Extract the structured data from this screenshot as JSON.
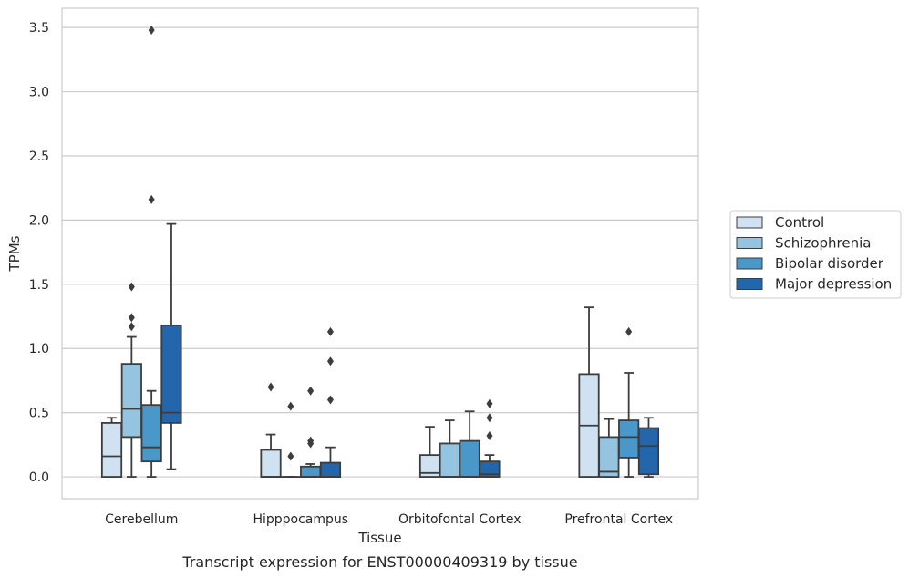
{
  "caption": "Transcript expression for ENST00000409319 by tissue",
  "chart_data": {
    "type": "box",
    "xlabel": "Tissue",
    "ylabel": "TPMs",
    "ylim": [
      -0.17,
      3.65
    ],
    "yticks": [
      0.0,
      0.5,
      1.0,
      1.5,
      2.0,
      2.5,
      3.0,
      3.5
    ],
    "ytick_labels": [
      "0.0",
      "0.5",
      "1.0",
      "1.5",
      "2.0",
      "2.5",
      "3.0",
      "3.5"
    ],
    "grid": "horizontal",
    "legend_position": "right",
    "categories": [
      "Cerebellum",
      "Hipppocampus",
      "Orbitofontal Cortex",
      "Prefrontal Cortex"
    ],
    "series": [
      {
        "name": "Control",
        "color": "#d0e1f2",
        "boxes": [
          {
            "whislo": 0.0,
            "q1": 0.0,
            "med": 0.16,
            "q3": 0.42,
            "whishi": 0.46,
            "fliers": []
          },
          {
            "whislo": 0.0,
            "q1": 0.0,
            "med": 0.0,
            "q3": 0.21,
            "whishi": 0.33,
            "fliers": [
              0.7
            ]
          },
          {
            "whislo": 0.0,
            "q1": 0.0,
            "med": 0.03,
            "q3": 0.17,
            "whishi": 0.39,
            "fliers": []
          },
          {
            "whislo": 0.0,
            "q1": 0.0,
            "med": 0.4,
            "q3": 0.8,
            "whishi": 1.32,
            "fliers": []
          }
        ]
      },
      {
        "name": "Schizophrenia",
        "color": "#94c4df",
        "boxes": [
          {
            "whislo": 0.0,
            "q1": 0.31,
            "med": 0.53,
            "q3": 0.88,
            "whishi": 1.09,
            "fliers": [
              1.17,
              1.24,
              1.48
            ]
          },
          {
            "whislo": 0.0,
            "q1": 0.0,
            "med": 0.0,
            "q3": 0.0,
            "whishi": 0.0,
            "fliers": [
              0.16,
              0.55
            ]
          },
          {
            "whislo": 0.0,
            "q1": 0.0,
            "med": 0.0,
            "q3": 0.26,
            "whishi": 0.44,
            "fliers": []
          },
          {
            "whislo": 0.0,
            "q1": 0.0,
            "med": 0.04,
            "q3": 0.31,
            "whishi": 0.45,
            "fliers": []
          }
        ]
      },
      {
        "name": "Bipolar disorder",
        "color": "#4a98c9",
        "boxes": [
          {
            "whislo": 0.0,
            "q1": 0.12,
            "med": 0.23,
            "q3": 0.56,
            "whishi": 0.67,
            "fliers": [
              2.16,
              3.48
            ]
          },
          {
            "whislo": 0.0,
            "q1": 0.0,
            "med": 0.0,
            "q3": 0.08,
            "whishi": 0.1,
            "fliers": [
              0.26,
              0.28,
              0.67
            ]
          },
          {
            "whislo": 0.0,
            "q1": 0.0,
            "med": 0.0,
            "q3": 0.28,
            "whishi": 0.51,
            "fliers": []
          },
          {
            "whislo": 0.0,
            "q1": 0.15,
            "med": 0.31,
            "q3": 0.44,
            "whishi": 0.81,
            "fliers": [
              1.13
            ]
          }
        ]
      },
      {
        "name": "Major depression",
        "color": "#2366ab",
        "boxes": [
          {
            "whislo": 0.06,
            "q1": 0.42,
            "med": 0.5,
            "q3": 1.18,
            "whishi": 1.97,
            "fliers": []
          },
          {
            "whislo": 0.0,
            "q1": 0.0,
            "med": 0.0,
            "q3": 0.11,
            "whishi": 0.23,
            "fliers": [
              0.6,
              0.9,
              1.13
            ]
          },
          {
            "whislo": 0.0,
            "q1": 0.0,
            "med": 0.02,
            "q3": 0.12,
            "whishi": 0.17,
            "fliers": [
              0.32,
              0.46,
              0.57
            ]
          },
          {
            "whislo": 0.0,
            "q1": 0.02,
            "med": 0.24,
            "q3": 0.38,
            "whishi": 0.46,
            "fliers": []
          }
        ]
      }
    ]
  }
}
